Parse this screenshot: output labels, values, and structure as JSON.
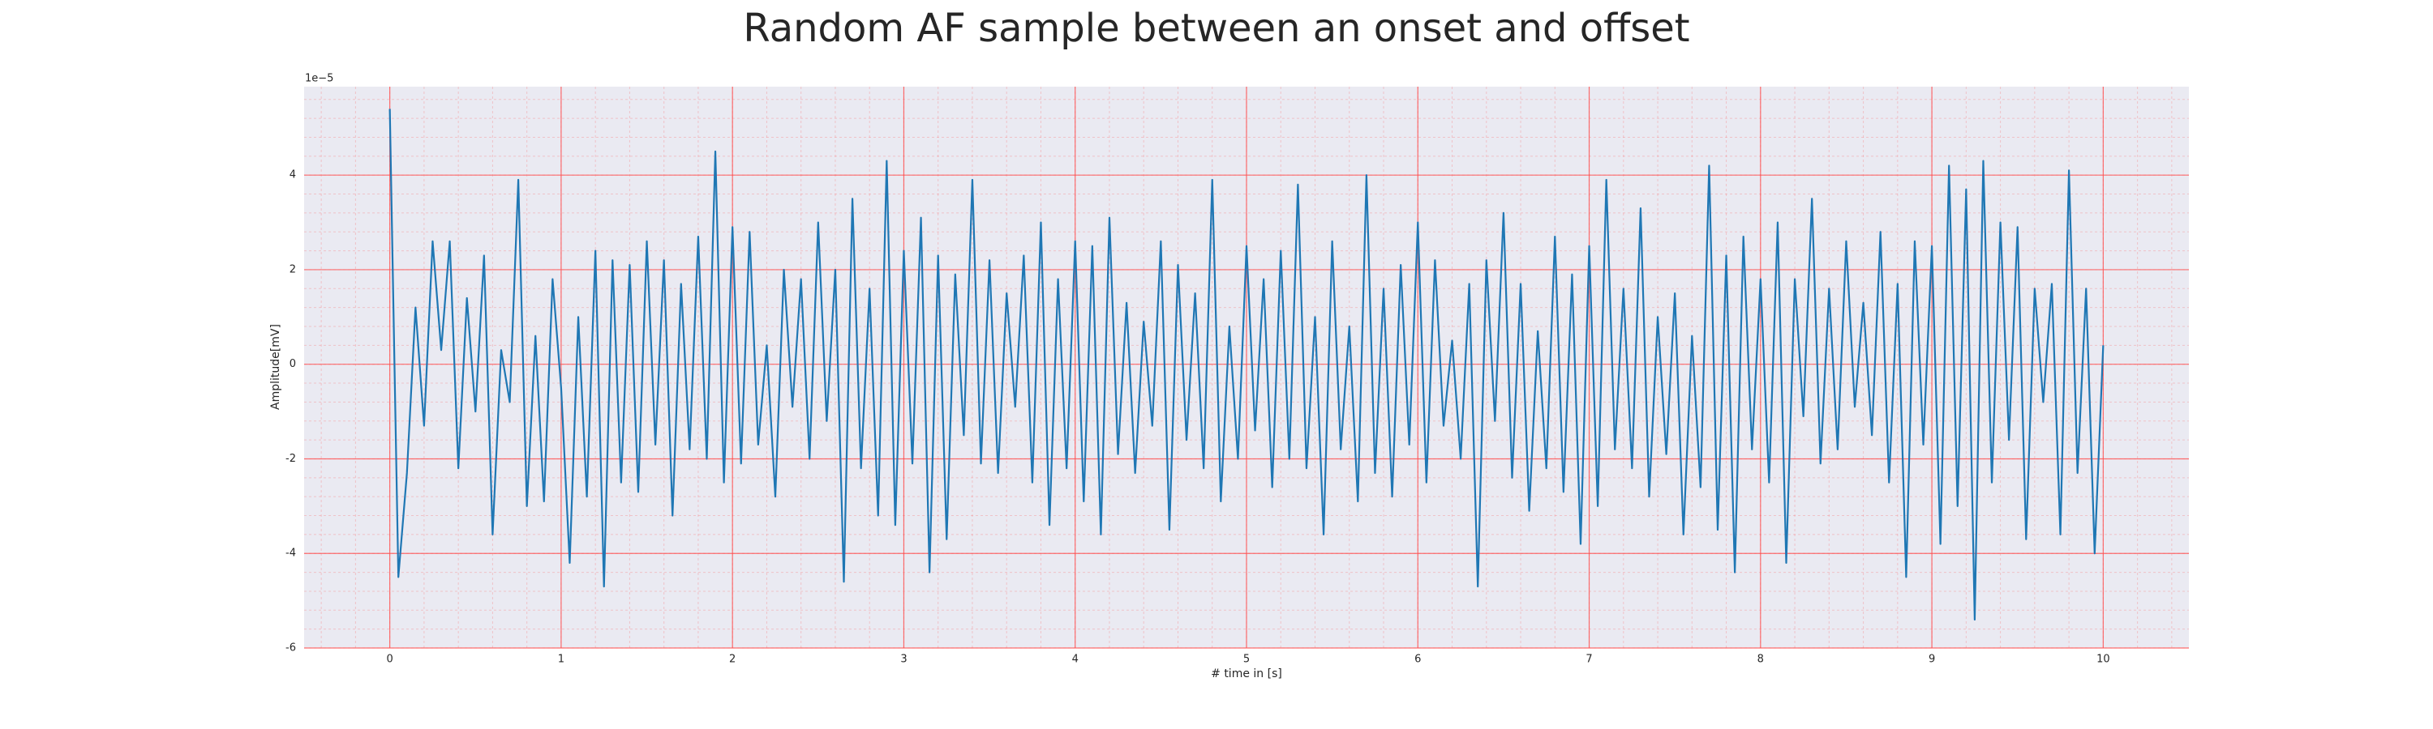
{
  "chart_data": {
    "type": "line",
    "title": "Random AF sample between an onset and offset",
    "xlabel": "# time in [s]",
    "ylabel": "Amplitude[mV]",
    "y_offset_label": "1e−5",
    "color": "#1f77b4",
    "background": "#eaeaf2",
    "grid": true,
    "grid_color": "#ff4d4d",
    "minor_grid": true,
    "xlim": [
      -0.5,
      10.5
    ],
    "xticks": [
      0,
      1,
      2,
      3,
      4,
      5,
      6,
      7,
      8,
      9,
      10
    ],
    "ylim": [
      -6,
      5.87
    ],
    "yticks": [
      -6,
      -4,
      -2,
      0,
      2,
      4
    ],
    "x": [
      0,
      0.05,
      0.1,
      0.15,
      0.2,
      0.25,
      0.3,
      0.35,
      0.4,
      0.45,
      0.5,
      0.55,
      0.6,
      0.65,
      0.7,
      0.75,
      0.8,
      0.85,
      0.9,
      0.95,
      1,
      1.05,
      1.1,
      1.15,
      1.2,
      1.25,
      1.3,
      1.35,
      1.4,
      1.45,
      1.5,
      1.55,
      1.6,
      1.65,
      1.7,
      1.75,
      1.8,
      1.85,
      1.9,
      1.95,
      2,
      2.05,
      2.1,
      2.15,
      2.2,
      2.25,
      2.3,
      2.35,
      2.4,
      2.45,
      2.5,
      2.55,
      2.6,
      2.65,
      2.7,
      2.75,
      2.8,
      2.85,
      2.9,
      2.95,
      3,
      3.05,
      3.1,
      3.15,
      3.2,
      3.25,
      3.3,
      3.35,
      3.4,
      3.45,
      3.5,
      3.55,
      3.6,
      3.65,
      3.7,
      3.75,
      3.8,
      3.85,
      3.9,
      3.95,
      4,
      4.05,
      4.1,
      4.15,
      4.2,
      4.25,
      4.3,
      4.35,
      4.4,
      4.45,
      4.5,
      4.55,
      4.6,
      4.65,
      4.7,
      4.75,
      4.8,
      4.85,
      4.9,
      4.95,
      5,
      5.05,
      5.1,
      5.15,
      5.2,
      5.25,
      5.3,
      5.35,
      5.4,
      5.45,
      5.5,
      5.55,
      5.6,
      5.65,
      5.7,
      5.75,
      5.8,
      5.85,
      5.9,
      5.95,
      6,
      6.05,
      6.1,
      6.15,
      6.2,
      6.25,
      6.3,
      6.35,
      6.4,
      6.45,
      6.5,
      6.55,
      6.6,
      6.65,
      6.7,
      6.75,
      6.8,
      6.85,
      6.9,
      6.95,
      7,
      7.05,
      7.1,
      7.15,
      7.2,
      7.25,
      7.3,
      7.35,
      7.4,
      7.45,
      7.5,
      7.55,
      7.6,
      7.65,
      7.7,
      7.75,
      7.8,
      7.85,
      7.9,
      7.95,
      8,
      8.05,
      8.1,
      8.15,
      8.2,
      8.25,
      8.3,
      8.35,
      8.4,
      8.45,
      8.5,
      8.55,
      8.6,
      8.65,
      8.7,
      8.75,
      8.8,
      8.85,
      8.9,
      8.95,
      9,
      9.05,
      9.1,
      9.15,
      9.2,
      9.25,
      9.3,
      9.35,
      9.4,
      9.45,
      9.5,
      9.55,
      9.6,
      9.65,
      9.7,
      9.75,
      9.8,
      9.85,
      9.9,
      9.95,
      10
    ],
    "values": [
      5.4,
      -4.5,
      -2.3,
      1.2,
      -1.3,
      2.6,
      0.3,
      2.6,
      -2.2,
      1.4,
      -1.0,
      2.3,
      -3.6,
      0.3,
      -0.8,
      3.9,
      -3.0,
      0.6,
      -2.9,
      1.8,
      -0.5,
      -4.2,
      1.0,
      -2.8,
      2.4,
      -4.7,
      2.2,
      -2.5,
      2.1,
      -2.7,
      2.6,
      -1.7,
      2.2,
      -3.2,
      1.7,
      -1.8,
      2.7,
      -2.0,
      4.5,
      -2.5,
      2.9,
      -2.1,
      2.8,
      -1.7,
      0.4,
      -2.8,
      2.0,
      -0.9,
      1.8,
      -2.0,
      3.0,
      -1.2,
      2.0,
      -4.6,
      3.5,
      -2.2,
      1.6,
      -3.2,
      4.3,
      -3.4,
      2.4,
      -2.1,
      3.1,
      -4.4,
      2.3,
      -3.7,
      1.9,
      -1.5,
      3.9,
      -2.1,
      2.2,
      -2.3,
      1.5,
      -0.9,
      2.3,
      -2.5,
      3.0,
      -3.4,
      1.8,
      -2.2,
      2.6,
      -2.9,
      2.5,
      -3.6,
      3.1,
      -1.9,
      1.3,
      -2.3,
      0.9,
      -1.3,
      2.6,
      -3.5,
      2.1,
      -1.6,
      1.5,
      -2.2,
      3.9,
      -2.9,
      0.8,
      -2.0,
      2.5,
      -1.4,
      1.8,
      -2.6,
      2.4,
      -2.0,
      3.8,
      -2.2,
      1.0,
      -3.6,
      2.6,
      -1.8,
      0.8,
      -2.9,
      4.0,
      -2.3,
      1.6,
      -2.8,
      2.1,
      -1.7,
      3.0,
      -2.5,
      2.2,
      -1.3,
      0.5,
      -2.0,
      1.7,
      -4.7,
      2.2,
      -1.2,
      3.2,
      -2.4,
      1.7,
      -3.1,
      0.7,
      -2.2,
      2.7,
      -2.7,
      1.9,
      -3.8,
      2.5,
      -3.0,
      3.9,
      -1.8,
      1.6,
      -2.2,
      3.3,
      -2.8,
      1.0,
      -1.9,
      1.5,
      -3.6,
      0.6,
      -2.6,
      4.2,
      -3.5,
      2.3,
      -4.4,
      2.7,
      -1.8,
      1.8,
      -2.5,
      3.0,
      -4.2,
      1.8,
      -1.1,
      3.5,
      -2.1,
      1.6,
      -1.8,
      2.6,
      -0.9,
      1.3,
      -1.5,
      2.8,
      -2.5,
      1.7,
      -4.5,
      2.6,
      -1.7,
      2.5,
      -3.8,
      4.2,
      -3.0,
      3.7,
      -5.4,
      4.3,
      -2.5,
      3.0,
      -1.6,
      2.9,
      -3.7,
      1.6,
      -0.8,
      1.7,
      -3.6,
      4.1,
      -2.3,
      1.6,
      -4.0,
      0.4
    ]
  }
}
